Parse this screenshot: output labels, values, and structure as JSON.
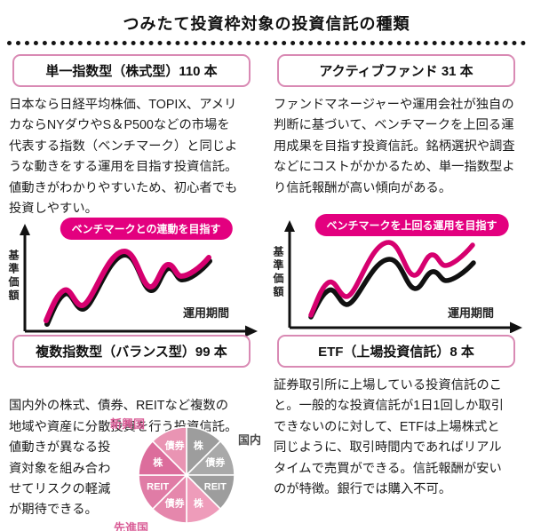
{
  "page": {
    "title": "つみたて投資枠対象の投資信託の種類"
  },
  "colors": {
    "badge_magenta": "#e3007f",
    "line_pink": "#d6006f",
    "line_black": "#111111",
    "header_border_pink": "#d98ab4",
    "region_label_pink": "#d95c96",
    "region_label_gray": "#4a4a4a"
  },
  "sections": {
    "single_index": {
      "header": "単一指数型（株式型）110 本",
      "description": "日本なら日経平均株価、TOPIX、アメリ\nカならNYダウやS＆P500などの市場を\n代表する指数（ベンチマーク）と同じよ\nうな動きをする運用を目指す投資信託。\n値動きがわかりやすいため、初心者でも\n投資しやすい。",
      "badge": "ベンチマークとの連動を目指す",
      "y_axis": "基準価額",
      "x_axis": "運用期間"
    },
    "active_fund": {
      "header": "アクティブファンド 31 本",
      "description": "ファンドマネージャーや運用会社が独自の\n判断に基づいて、ベンチマークを上回る運\n用成果を目指す投資信託。銘柄選択や調査\nなどにコストがかかるため、単一指数型よ\nり信託報酬が高い傾向がある。",
      "badge": "ベンチマークを上回る運用を目指す",
      "y_axis": "基準価額",
      "x_axis": "運用期間"
    },
    "balance": {
      "header": "複数指数型（バランス型）99 本",
      "description": "国内外の株式、債券、REITなど複数の\n地域や資産に分散投資を行う投資信託。\n値動きが異なる投\n資対象を組み合わ\nせてリスクの軽減\nが期待できる。"
    },
    "etf": {
      "header": "ETF（上場投資信託）8 本",
      "description": "証券取引所に上場している投資信託のこ\nと。一般的な投資信託が1日1回しか取引\nできないのに対して、ETFは上場株式と\n同じように、取引時間内であればリアル\nタイムで売買ができる。信託報酬が安い\nのが特徴。銀行では購入不可。"
    }
  },
  "chart_data": [
    {
      "type": "line",
      "title": "ベンチマークとの連動を目指す",
      "xlabel": "運用期間",
      "ylabel": "基準価額",
      "series": [
        {
          "name": "fund-line-pink",
          "color": "#d6006f"
        },
        {
          "name": "benchmark-line-black",
          "color": "#111111"
        }
      ],
      "style": "schematic wavy curve, pink fund line tracks black benchmark almost exactly"
    },
    {
      "type": "line",
      "title": "ベンチマークを上回る運用を目指す",
      "xlabel": "運用期間",
      "ylabel": "基準価額",
      "series": [
        {
          "name": "fund-line-pink",
          "color": "#d6006f"
        },
        {
          "name": "benchmark-line-black",
          "color": "#111111"
        }
      ],
      "style": "schematic wavy curves, pink fund line rises increasingly above black benchmark"
    },
    {
      "type": "pie",
      "equal_slices": true,
      "slices": [
        {
          "label": "株",
          "group": "国内",
          "value": 12.5,
          "color": "#9d9d9d"
        },
        {
          "label": "債券",
          "group": "国内",
          "value": 12.5,
          "color": "#a9a9a9"
        },
        {
          "label": "REIT",
          "group": "国内",
          "value": 12.5,
          "color": "#9d9d9d"
        },
        {
          "label": "株",
          "group": "先進国",
          "value": 12.5,
          "color": "#ee9cba"
        },
        {
          "label": "債券",
          "group": "先進国",
          "value": 12.5,
          "color": "#e587ac"
        },
        {
          "label": "REIT",
          "group": "先進国",
          "value": 12.5,
          "color": "#e07ca6"
        },
        {
          "label": "株",
          "group": "新興国",
          "value": 12.5,
          "color": "#dc6d9c"
        },
        {
          "label": "債券",
          "group": "新興国",
          "value": 12.5,
          "color": "#e994b3"
        }
      ],
      "region_labels": [
        {
          "text": "新興国",
          "color": "#d95c96"
        },
        {
          "text": "国内",
          "color": "#4a4a4a"
        },
        {
          "text": "先進国",
          "color": "#d95c96"
        }
      ]
    }
  ]
}
